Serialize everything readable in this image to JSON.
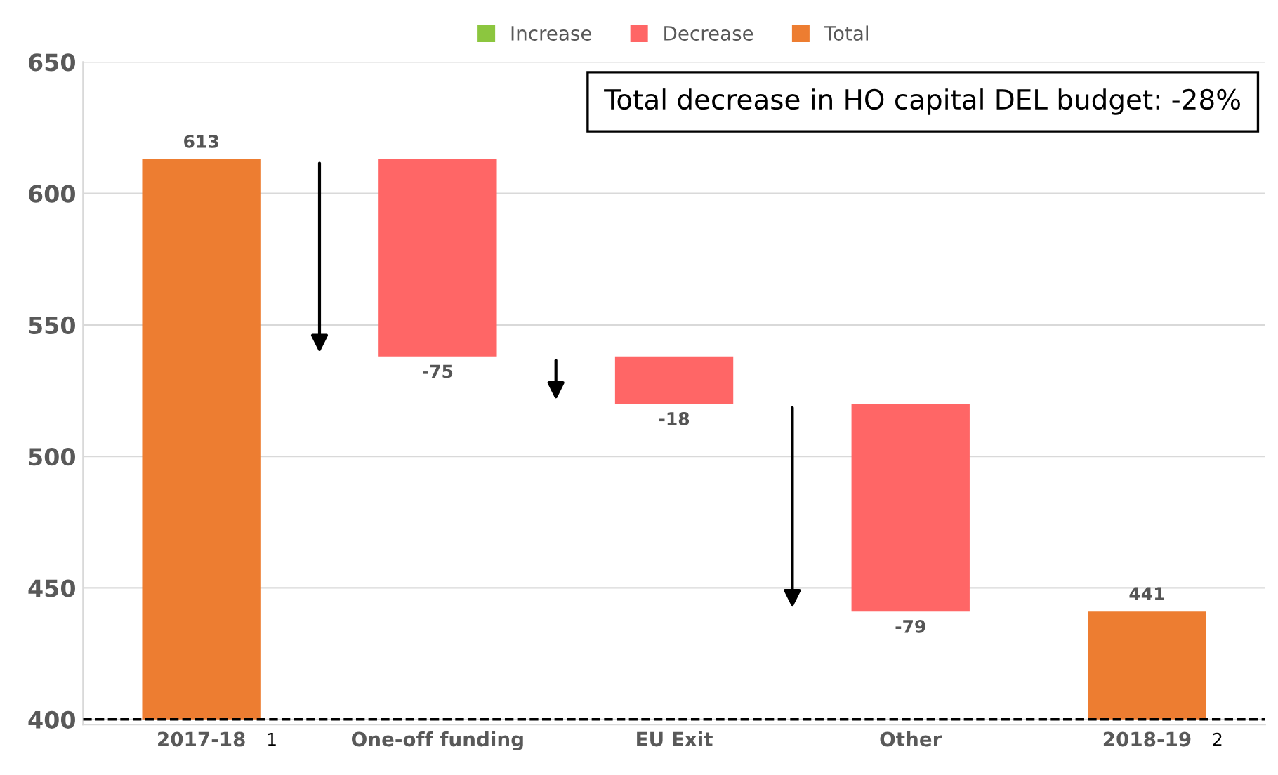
{
  "chart_data": {
    "type": "bar",
    "categories": [
      "2017-18",
      "One-off funding",
      "EU Exit",
      "Other",
      "2018-19"
    ],
    "series": [
      {
        "name": "Increase",
        "color": "#8cc63f",
        "values": [
          null,
          null,
          null,
          null,
          null
        ]
      },
      {
        "name": "Decrease",
        "color": "#ff6666",
        "base": [
          null,
          613,
          538,
          520,
          null
        ],
        "values": [
          null,
          -75,
          -18,
          -79,
          null
        ],
        "value_labels": [
          null,
          "-75",
          "-18",
          "-79",
          null
        ]
      },
      {
        "name": "Total",
        "color": "#ed7d31",
        "base": [
          400,
          null,
          null,
          null,
          400
        ],
        "values": [
          213,
          null,
          null,
          null,
          41
        ],
        "value_labels": [
          "613",
          null,
          null,
          null,
          "441"
        ]
      }
    ],
    "ylim": [
      398,
      650
    ],
    "yticks": [
      400,
      450,
      500,
      550,
      600,
      650
    ],
    "grid": "y",
    "legend": "top",
    "ref_lines": [
      {
        "axis": "y",
        "value": 400,
        "label": null,
        "color": "#000000",
        "line_style": "dashed"
      }
    ],
    "annotations": [
      "Total decrease in HO capital DEL budget: -28%",
      "1",
      "2"
    ]
  }
}
